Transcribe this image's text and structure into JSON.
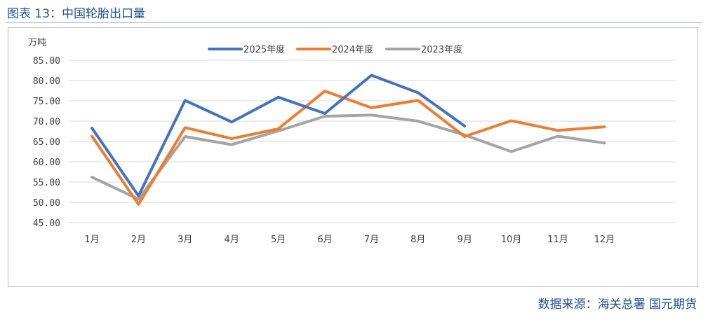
{
  "header": {
    "title": "图表 13：中国轮胎出口量"
  },
  "footer": {
    "source": "数据来源：海关总署    国元期货"
  },
  "colors": {
    "series_2025": "#4472c4",
    "series_2024": "#ed7d31",
    "series_2023": "#a5a5a5",
    "grid": "#d9d9d9"
  },
  "chart_data": {
    "type": "line",
    "title": "",
    "xlabel": "",
    "ylabel": "",
    "unit": "万吨",
    "categories": [
      "1月",
      "2月",
      "3月",
      "4月",
      "5月",
      "6月",
      "7月",
      "8月",
      "9月",
      "10月",
      "11月",
      "12月"
    ],
    "ylim": [
      45,
      85
    ],
    "ytick_step": 5,
    "ytick_labels": [
      "45.00",
      "50.00",
      "55.00",
      "60.00",
      "65.00",
      "70.00",
      "75.00",
      "80.00",
      "85.00"
    ],
    "grid": true,
    "legend_position": "top-center",
    "series": [
      {
        "name": "2025年度",
        "color": "#4472c4",
        "values": [
          68.3,
          51.6,
          75.1,
          69.8,
          75.9,
          71.9,
          81.3,
          77.0,
          68.8,
          null,
          null,
          null
        ]
      },
      {
        "name": "2024年度",
        "color": "#ed7d31",
        "values": [
          66.3,
          49.5,
          68.4,
          65.7,
          68.1,
          77.4,
          73.3,
          75.1,
          66.2,
          70.1,
          67.7,
          68.6
        ]
      },
      {
        "name": "2023年度",
        "color": "#a5a5a5",
        "values": [
          56.2,
          50.8,
          66.2,
          64.2,
          67.6,
          71.2,
          71.5,
          70.0,
          66.6,
          62.5,
          66.3,
          64.6
        ]
      }
    ]
  }
}
